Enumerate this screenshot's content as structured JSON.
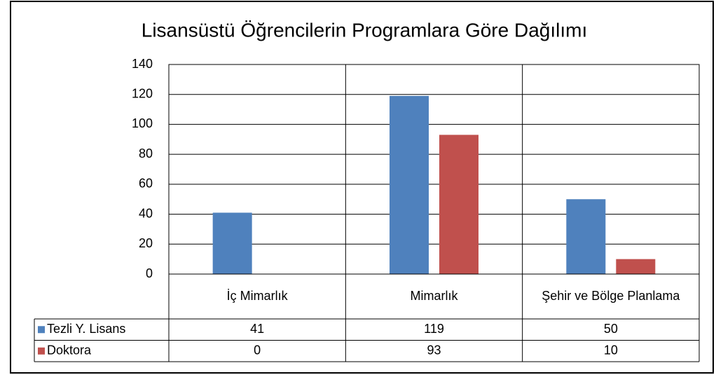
{
  "chart_data": {
    "type": "bar",
    "title": "Lisansüstü Öğrencilerin Programlara Göre Dağılımı",
    "categories": [
      "İç Mimarlık",
      "Mimarlık",
      "Şehir ve Bölge Planlama"
    ],
    "series": [
      {
        "name": "Tezli Y. Lisans",
        "color": "#4f81bd",
        "values": [
          41,
          119,
          50
        ]
      },
      {
        "name": "Doktora",
        "color": "#c0504d",
        "values": [
          0,
          93,
          10
        ]
      }
    ],
    "ylim": [
      0,
      140
    ],
    "yticks": [
      0,
      20,
      40,
      60,
      80,
      100,
      120,
      140
    ],
    "grid": true,
    "data_table": true
  }
}
